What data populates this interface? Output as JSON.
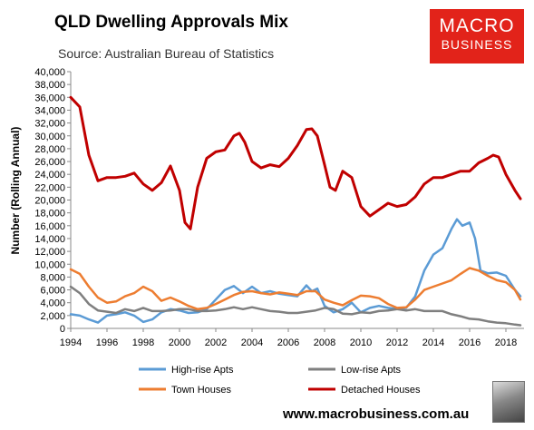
{
  "title": "QLD Dwelling Approvals Mix",
  "subtitle": "Source: Australian Bureau of Statistics",
  "brand": {
    "line1": "MACRO",
    "line2": "BUSINESS",
    "color": "#e2231a"
  },
  "website": "www.macrobusiness.com.au",
  "chart_data": {
    "type": "line",
    "title": "QLD Dwelling Approvals Mix",
    "ylabel": "Number (Rolling Annual)",
    "xlabel": "",
    "xlim": [
      1994,
      2019
    ],
    "ylim": [
      0,
      40000
    ],
    "yticks": [
      0,
      2000,
      4000,
      6000,
      8000,
      10000,
      12000,
      14000,
      16000,
      18000,
      20000,
      22000,
      24000,
      26000,
      28000,
      30000,
      32000,
      34000,
      36000,
      38000,
      40000
    ],
    "ytick_labels": [
      "0",
      "2,000",
      "4,000",
      "6,000",
      "8,000",
      "10,000",
      "12,000",
      "14,000",
      "16,000",
      "18,000",
      "20,000",
      "22,000",
      "24,000",
      "26,000",
      "28,000",
      "30,000",
      "32,000",
      "34,000",
      "36,000",
      "38,000",
      "40,000"
    ],
    "xticks": [
      1994,
      1996,
      1998,
      2000,
      2002,
      2004,
      2006,
      2008,
      2010,
      2012,
      2014,
      2016,
      2018
    ],
    "xtick_labels": [
      "1994",
      "1996",
      "1998",
      "2000",
      "2002",
      "2004",
      "2006",
      "2008",
      "2010",
      "2012",
      "2014",
      "2016",
      "2018"
    ],
    "grid": false,
    "legend": "bottom",
    "series": [
      {
        "name": "High-rise Apts",
        "color": "#5b9bd5",
        "x": [
          1994,
          1994.5,
          1995,
          1995.5,
          1996,
          1996.5,
          1997,
          1997.5,
          1998,
          1998.5,
          1999,
          1999.5,
          2000,
          2000.5,
          2001,
          2001.5,
          2002,
          2002.5,
          2003,
          2003.5,
          2004,
          2004.5,
          2005,
          2005.5,
          2006,
          2006.5,
          2007,
          2007.3,
          2007.6,
          2008,
          2008.5,
          2009,
          2009.5,
          2010,
          2010.5,
          2011,
          2011.5,
          2012,
          2012.5,
          2013,
          2013.5,
          2014,
          2014.5,
          2015,
          2015.3,
          2015.6,
          2016,
          2016.3,
          2016.6,
          2017,
          2017.5,
          2018,
          2018.5,
          2018.8
        ],
        "y": [
          2200,
          2000,
          1400,
          900,
          2000,
          2200,
          2500,
          2000,
          1000,
          1400,
          2500,
          3000,
          2800,
          2400,
          2500,
          3000,
          4500,
          6000,
          6600,
          5500,
          6500,
          5500,
          5800,
          5400,
          5200,
          5000,
          6700,
          5800,
          6200,
          3500,
          2500,
          3000,
          4000,
          2500,
          3200,
          3500,
          3200,
          3000,
          3200,
          5000,
          9000,
          11500,
          12500,
          15500,
          17000,
          16000,
          16500,
          14000,
          9000,
          8600,
          8700,
          8200,
          6000,
          5000
        ]
      },
      {
        "name": "Low-rise Apts",
        "color": "#7f7f7f",
        "x": [
          1994,
          1994.5,
          1995,
          1995.5,
          1996,
          1996.5,
          1997,
          1997.5,
          1998,
          1998.5,
          1999,
          1999.5,
          2000,
          2000.5,
          2001,
          2001.5,
          2002,
          2002.5,
          2003,
          2003.5,
          2004,
          2004.5,
          2005,
          2005.5,
          2006,
          2006.5,
          2007,
          2007.5,
          2008,
          2008.5,
          2009,
          2009.5,
          2010,
          2010.5,
          2011,
          2011.5,
          2012,
          2012.5,
          2013,
          2013.5,
          2014,
          2014.5,
          2015,
          2015.5,
          2016,
          2016.5,
          2017,
          2017.5,
          2018,
          2018.5,
          2018.8
        ],
        "y": [
          6500,
          5500,
          3800,
          2800,
          2600,
          2400,
          3000,
          2700,
          3200,
          2700,
          2700,
          2800,
          3000,
          3000,
          2700,
          2700,
          2800,
          3000,
          3300,
          3000,
          3300,
          3000,
          2700,
          2600,
          2400,
          2400,
          2600,
          2800,
          3200,
          3000,
          2300,
          2200,
          2500,
          2400,
          2700,
          2800,
          3000,
          2800,
          3000,
          2700,
          2700,
          2700,
          2200,
          1900,
          1500,
          1400,
          1100,
          900,
          800,
          600,
          500
        ]
      },
      {
        "name": "Town Houses",
        "color": "#ed7d31",
        "x": [
          1994,
          1994.5,
          1995,
          1995.5,
          1996,
          1996.5,
          1997,
          1997.5,
          1998,
          1998.5,
          1999,
          1999.5,
          2000,
          2000.5,
          2001,
          2001.5,
          2002,
          2002.5,
          2003,
          2003.5,
          2004,
          2004.5,
          2005,
          2005.5,
          2006,
          2006.5,
          2007,
          2007.5,
          2008,
          2008.5,
          2009,
          2009.5,
          2010,
          2010.5,
          2011,
          2011.5,
          2012,
          2012.5,
          2013,
          2013.5,
          2014,
          2014.5,
          2015,
          2015.5,
          2016,
          2016.5,
          2017,
          2017.5,
          2018,
          2018.5,
          2018.8
        ],
        "y": [
          9200,
          8500,
          6500,
          4800,
          4000,
          4200,
          5000,
          5500,
          6500,
          5800,
          4300,
          4800,
          4200,
          3500,
          3000,
          3200,
          3800,
          4500,
          5200,
          5700,
          5800,
          5500,
          5300,
          5600,
          5400,
          5200,
          5800,
          5800,
          4500,
          4000,
          3600,
          4400,
          5100,
          5000,
          4700,
          3800,
          3200,
          3300,
          4500,
          6000,
          6500,
          7000,
          7500,
          8500,
          9400,
          9000,
          8200,
          7500,
          7200,
          6000,
          4500
        ]
      },
      {
        "name": "Detached Houses",
        "color": "#c00000",
        "x": [
          1994,
          1994.5,
          1995,
          1995.5,
          1996,
          1996.5,
          1997,
          1997.5,
          1998,
          1998.5,
          1999,
          1999.5,
          2000,
          2000.3,
          2000.6,
          2001,
          2001.5,
          2002,
          2002.5,
          2003,
          2003.3,
          2003.6,
          2004,
          2004.5,
          2005,
          2005.5,
          2006,
          2006.5,
          2007,
          2007.3,
          2007.6,
          2008,
          2008.3,
          2008.6,
          2009,
          2009.5,
          2010,
          2010.5,
          2011,
          2011.5,
          2012,
          2012.5,
          2013,
          2013.5,
          2014,
          2014.5,
          2015,
          2015.5,
          2016,
          2016.5,
          2017,
          2017.3,
          2017.6,
          2018,
          2018.5,
          2018.8
        ],
        "y": [
          36000,
          34500,
          27000,
          23000,
          23500,
          23500,
          23700,
          24200,
          22500,
          21500,
          22700,
          25300,
          21500,
          16500,
          15500,
          22000,
          26500,
          27500,
          27800,
          30000,
          30400,
          29000,
          26000,
          25000,
          25500,
          25200,
          26500,
          28500,
          31000,
          31100,
          30000,
          25500,
          22000,
          21500,
          24500,
          23500,
          19000,
          17500,
          18500,
          19500,
          19000,
          19300,
          20500,
          22500,
          23500,
          23500,
          24000,
          24500,
          24500,
          25800,
          26500,
          27000,
          26700,
          24000,
          21500,
          20200
        ]
      }
    ]
  }
}
